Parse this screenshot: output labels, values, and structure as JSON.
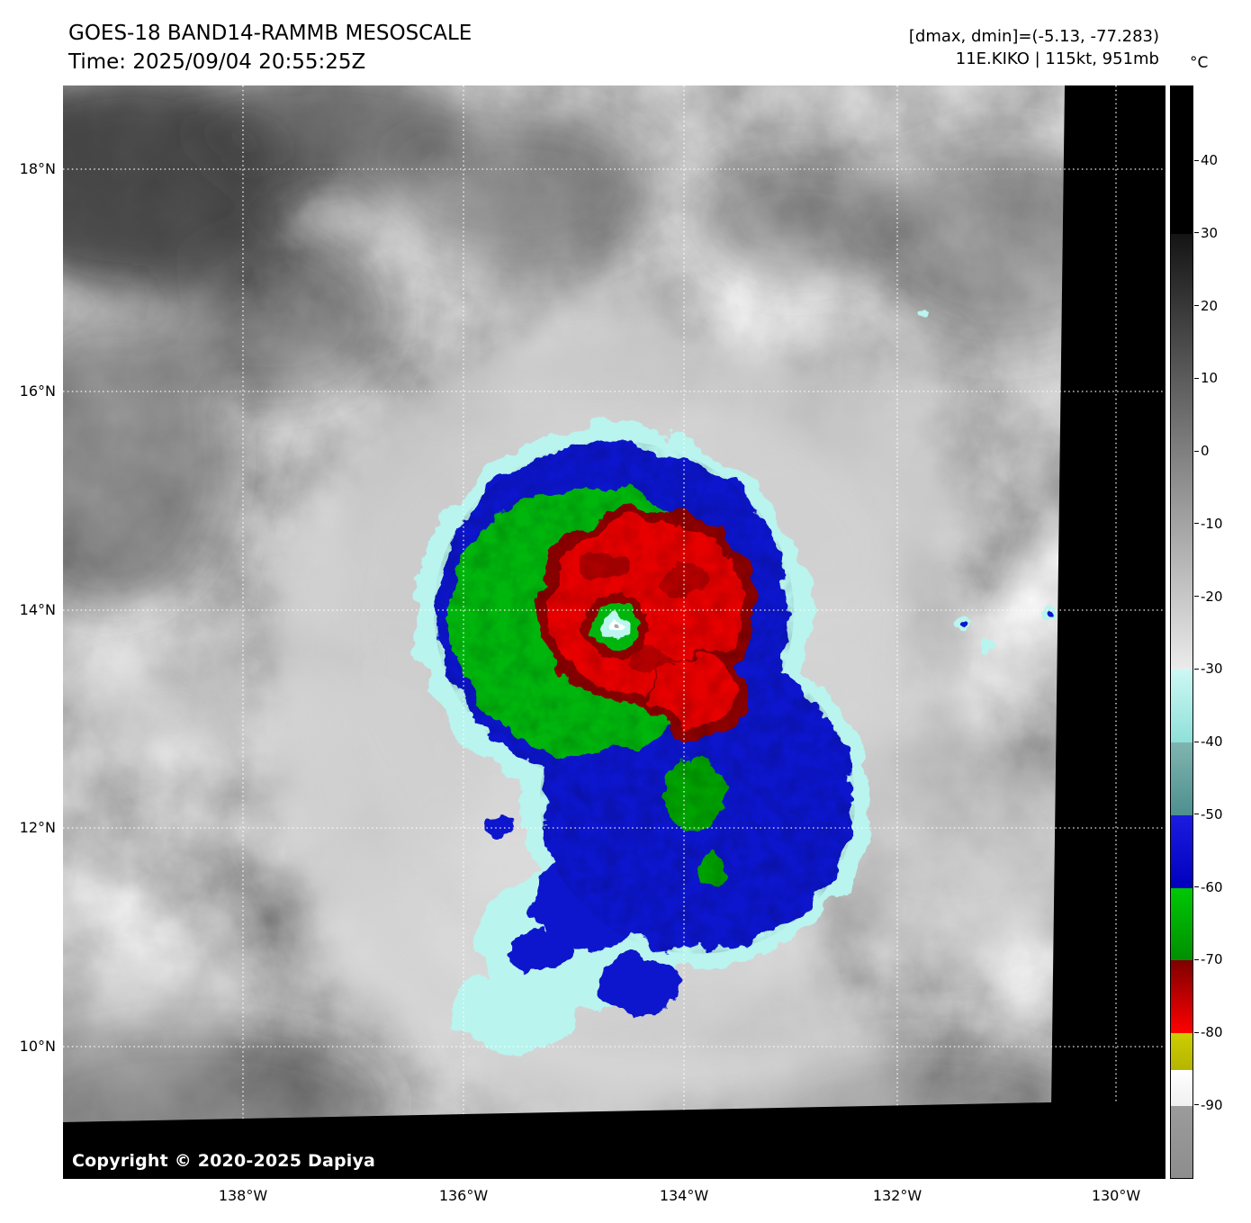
{
  "header": {
    "title": "GOES-18 BAND14-RAMMB MESOSCALE",
    "time": "Time: 2025/09/04 20:55:25Z",
    "dmax_dmin": "[dmax, dmin]=(-5.13, -77.283)",
    "storm": "11E.KIKO | 115kt, 951mb"
  },
  "axes": {
    "lat_labels": [
      "18°N",
      "16°N",
      "14°N",
      "12°N",
      "10°N"
    ],
    "lon_labels": [
      "138°W",
      "136°W",
      "134°W",
      "132°W",
      "130°W"
    ]
  },
  "colorbar": {
    "unit": "°C",
    "ticks": [
      "40",
      "30",
      "20",
      "10",
      "0",
      "-10",
      "-20",
      "-30",
      "-40",
      "-50",
      "-60",
      "-70",
      "-80",
      "-90"
    ],
    "segments": [
      {
        "from_c": 50.3,
        "to_c": 30,
        "top_color": "#000000",
        "bottom_color": "#000000"
      },
      {
        "from_c": 30,
        "to_c": -30,
        "top_color": "#141414",
        "bottom_color": "#ebebeb"
      },
      {
        "from_c": -30,
        "to_c": -40,
        "top_color": "#cdf8f4",
        "bottom_color": "#8fe0d8"
      },
      {
        "from_c": -40,
        "to_c": -50,
        "top_color": "#7fb5b0",
        "bottom_color": "#4e8f8f"
      },
      {
        "from_c": -50,
        "to_c": -60,
        "top_color": "#1c1ce0",
        "bottom_color": "#0000bd"
      },
      {
        "from_c": -60,
        "to_c": -70,
        "top_color": "#00c805",
        "bottom_color": "#008f02"
      },
      {
        "from_c": -70,
        "to_c": -80,
        "top_color": "#7e0000",
        "bottom_color": "#ff0000"
      },
      {
        "from_c": -80,
        "to_c": -85,
        "top_color": "#cdcd00",
        "bottom_color": "#b5b500"
      },
      {
        "from_c": -85,
        "to_c": -90,
        "top_color": "#ffffff",
        "bottom_color": "#f0f0f0"
      },
      {
        "from_c": -90,
        "to_c": -100.3,
        "top_color": "#9b9b9b",
        "bottom_color": "#8d8d8d"
      }
    ]
  },
  "footer": {
    "copyright": "Copyright © 2020-2025 Dapiya"
  }
}
